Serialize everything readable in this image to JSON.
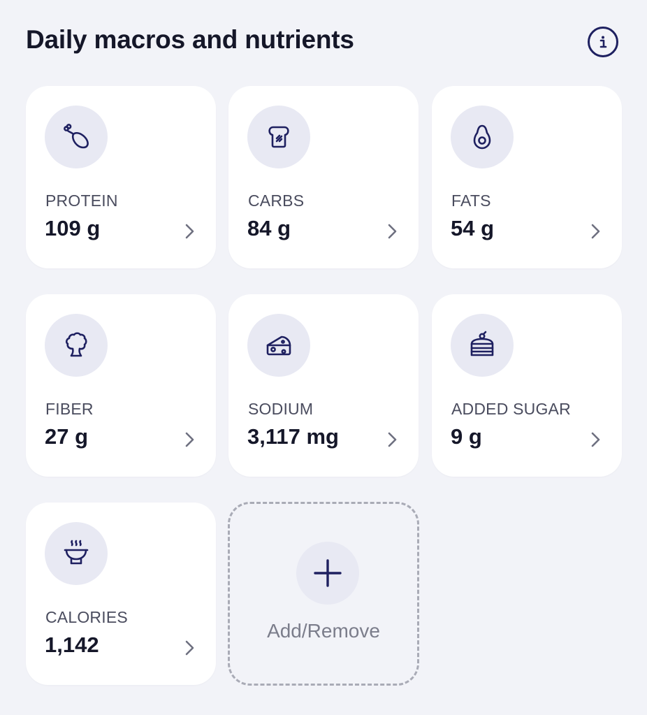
{
  "header": {
    "title": "Daily macros and nutrients",
    "info_icon": "info-icon"
  },
  "cards": [
    {
      "label": "PROTEIN",
      "value": "109 g",
      "icon": "drumstick-icon"
    },
    {
      "label": "CARBS",
      "value": "84 g",
      "icon": "bread-icon"
    },
    {
      "label": "FATS",
      "value": "54 g",
      "icon": "avocado-icon"
    },
    {
      "label": "FIBER",
      "value": "27 g",
      "icon": "broccoli-icon"
    },
    {
      "label": "SODIUM",
      "value": "3,117 mg",
      "icon": "cheese-icon"
    },
    {
      "label": "ADDED SUGAR",
      "value": "9 g",
      "icon": "cake-icon"
    },
    {
      "label": "CALORIES",
      "value": "1,142",
      "icon": "hot-bowl-icon"
    }
  ],
  "add_card": {
    "label": "Add/Remove",
    "icon": "plus-icon"
  },
  "colors": {
    "background": "#f2f3f8",
    "card": "#ffffff",
    "icon_circle": "#e8e9f3",
    "icon_stroke": "#1e2060",
    "text_primary": "#151729",
    "text_secondary": "#4a4c5e",
    "chevron": "#6e7080",
    "dashed_border": "#a9abb6"
  }
}
